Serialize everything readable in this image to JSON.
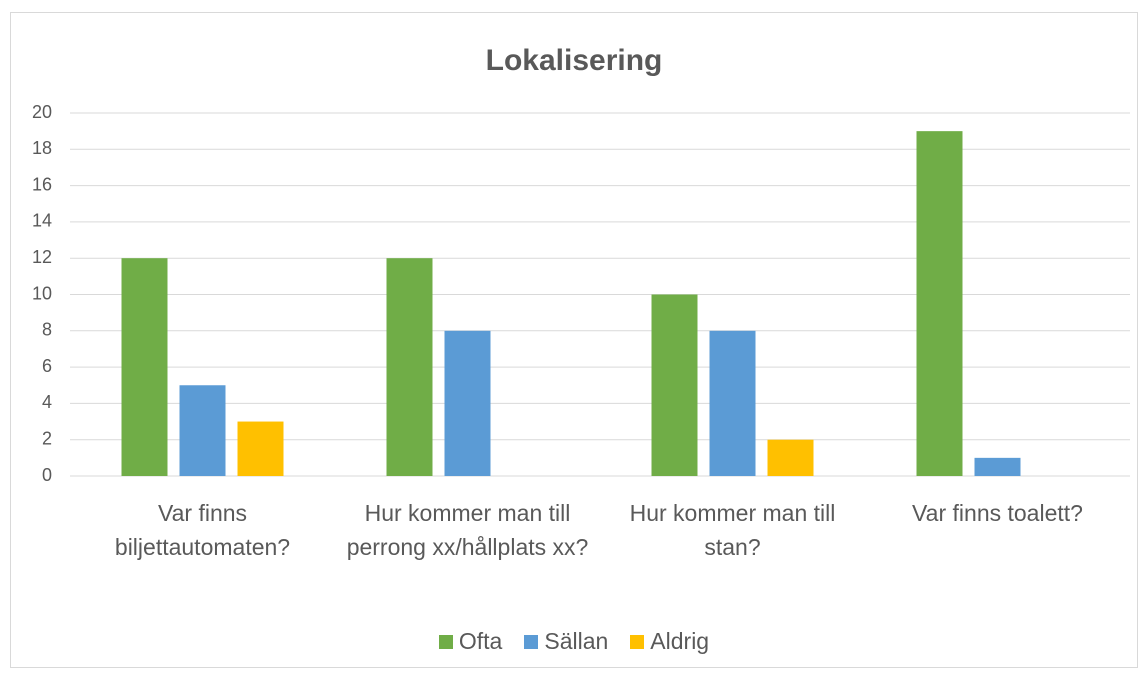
{
  "chart_data": {
    "type": "bar",
    "title": "Lokalisering",
    "categories": [
      "Var finns biljettautomaten?",
      "Hur kommer man till perrong xx/hållplats xx?",
      "Hur kommer man till stan?",
      "Var finns toalett?"
    ],
    "series": [
      {
        "name": "Ofta",
        "color": "#70ad47",
        "values": [
          12,
          12,
          10,
          19
        ]
      },
      {
        "name": "Sällan",
        "color": "#5b9bd5",
        "values": [
          5,
          8,
          8,
          1
        ]
      },
      {
        "name": "Aldrig",
        "color": "#ffc000",
        "values": [
          3,
          0,
          2,
          0
        ]
      }
    ],
    "ylim": [
      0,
      20
    ],
    "yticks": [
      0,
      2,
      4,
      6,
      8,
      10,
      12,
      14,
      16,
      18,
      20
    ],
    "grid": true,
    "legend": "bottom"
  }
}
